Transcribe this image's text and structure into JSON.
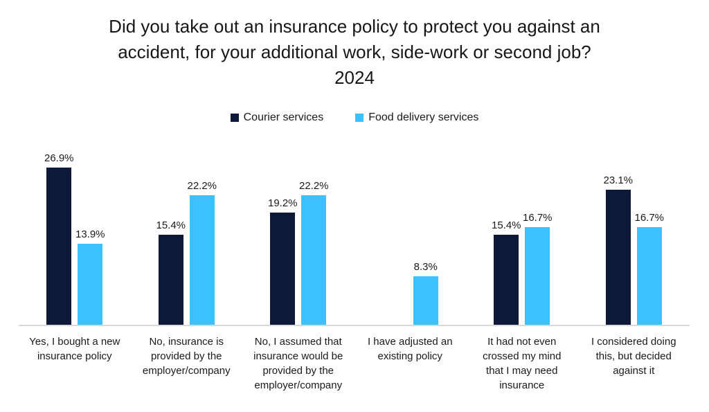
{
  "header": {
    "title_line1": "Did you take out an insurance policy to protect you against an",
    "title_line2": "accident, for your additional work, side-work or second job?",
    "title_line3": "2024"
  },
  "chart_data": {
    "type": "bar",
    "title": "Did you take out an insurance policy to protect you against an accident, for your additional work, side-work or second job? 2024",
    "categories": [
      "Yes, I bought a new\ninsurance policy",
      "No, insurance is\nprovided by the\nemployer/company",
      "No, I assumed that\ninsurance would be\nprovided by the\nemployer/company",
      "I have adjusted an\nexisting policy",
      "It had not even\ncrossed my mind\nthat I may need\ninsurance",
      "I considered doing\nthis, but decided\nagainst it"
    ],
    "series": [
      {
        "name": "Courier services",
        "color": "#0e1839",
        "values": [
          26.9,
          15.4,
          19.2,
          null,
          15.4,
          23.1
        ]
      },
      {
        "name": "Food delivery services",
        "color": "#3bc2fc",
        "values": [
          13.9,
          22.2,
          22.2,
          8.3,
          16.7,
          16.7
        ]
      }
    ],
    "value_suffix": "%",
    "ylim": [
      0,
      32
    ],
    "grid": false,
    "y_axis_visible": false,
    "legend_position": "top",
    "axis_line_color": "#d9d9d9",
    "background_color": "#ffffff"
  }
}
